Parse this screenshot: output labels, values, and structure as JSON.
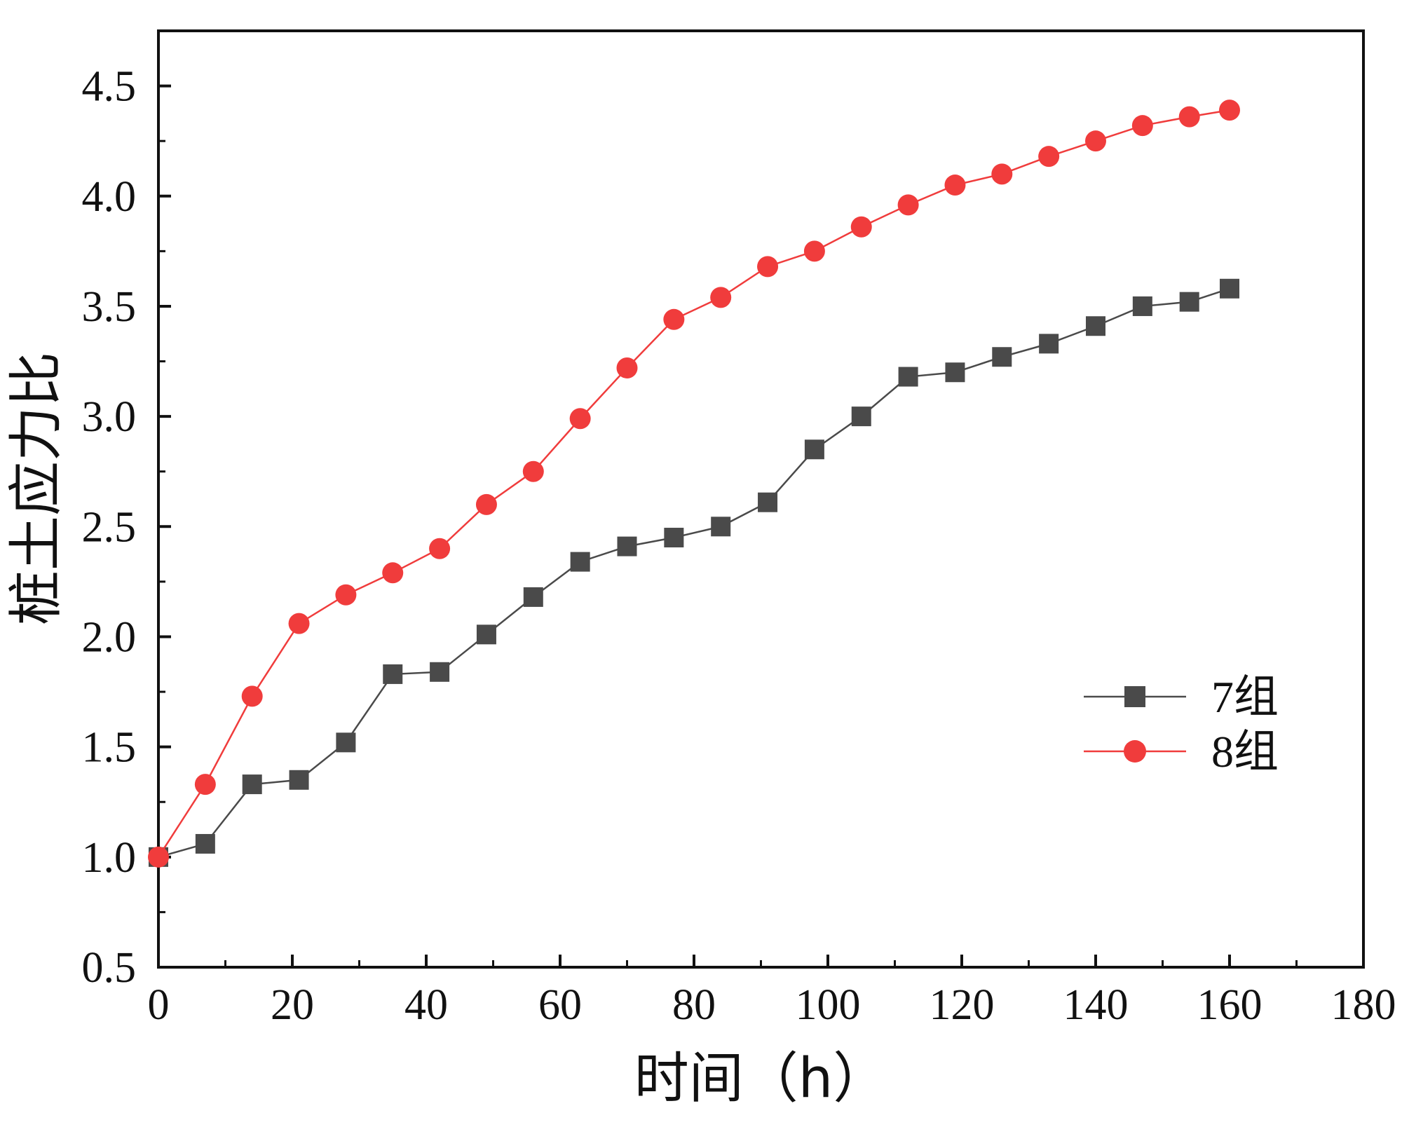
{
  "chart_data": {
    "type": "line",
    "title": "",
    "xlabel": "时间（h）",
    "ylabel": "桩土应力比",
    "xlim": [
      0,
      180
    ],
    "ylim": [
      0.5,
      4.75
    ],
    "xticks": [
      0,
      20,
      40,
      60,
      80,
      100,
      120,
      140,
      160,
      180
    ],
    "xtick_labels": [
      "0",
      "20",
      "40",
      "60",
      "80",
      "100",
      "120",
      "140",
      "160",
      "180"
    ],
    "yticks": [
      0.5,
      1.0,
      1.5,
      2.0,
      2.5,
      3.0,
      3.5,
      4.0,
      4.5
    ],
    "ytick_labels": [
      "0.5",
      "1.0",
      "1.5",
      "2.0",
      "2.5",
      "3.0",
      "3.5",
      "4.0",
      "4.5"
    ],
    "grid": false,
    "legend_position": "center-right",
    "x": [
      0,
      7,
      14,
      21,
      28,
      35,
      42,
      49,
      56,
      63,
      70,
      77,
      84,
      91,
      98,
      105,
      112,
      119,
      126,
      133,
      140,
      147,
      154,
      160
    ],
    "series": [
      {
        "name": "7组",
        "color": "#4a4a4a",
        "marker": "square",
        "values": [
          1.0,
          1.06,
          1.33,
          1.35,
          1.52,
          1.83,
          1.84,
          2.01,
          2.18,
          2.34,
          2.41,
          2.45,
          2.5,
          2.61,
          2.85,
          3.0,
          3.18,
          3.2,
          3.27,
          3.33,
          3.41,
          3.5,
          3.52,
          3.58
        ]
      },
      {
        "name": "8组",
        "color": "#f03c3c",
        "marker": "circle",
        "values": [
          1.0,
          1.33,
          1.73,
          2.06,
          2.19,
          2.29,
          2.4,
          2.6,
          2.75,
          2.99,
          3.22,
          3.44,
          3.54,
          3.68,
          3.75,
          3.86,
          3.96,
          4.05,
          4.1,
          4.18,
          4.25,
          4.32,
          4.36,
          4.39
        ]
      }
    ]
  }
}
